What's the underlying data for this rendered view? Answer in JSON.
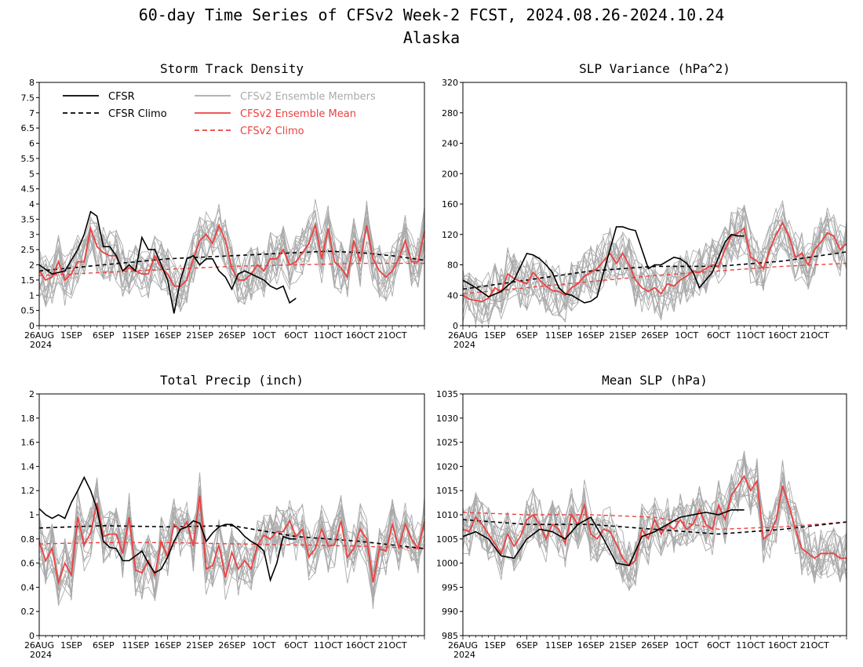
{
  "title": "60-day Time Series of CFSv2 Week-2 FCST, 2024.08.26-2024.10.24",
  "subtitle": "Alaska",
  "colors": {
    "cfsr": "#000000",
    "ensemble_member": "#aaaaaa",
    "ensemble_mean": "#ee4040",
    "cfsv2_climo": "#ee4040"
  },
  "x_tick_labels": [
    "26AUG",
    "1SEP",
    "6SEP",
    "11SEP",
    "16SEP",
    "21SEP",
    "26SEP",
    "1OCT",
    "6OCT",
    "11OCT",
    "16OCT",
    "21OCT"
  ],
  "x_year_label": "2024",
  "legend": {
    "cfsr": "CFSR",
    "cfsr_climo": "CFSR Climo",
    "members": "CFSv2 Ensemble Members",
    "ens_mean": "CFSv2 Ensemble Mean",
    "cfsv2_climo": "CFSv2 Climo"
  },
  "chart_data": [
    {
      "type": "line",
      "title": "Storm Track Density",
      "x_day_offsets_from": "26AUG",
      "xlim": [
        0,
        60
      ],
      "ylim": [
        0,
        8
      ],
      "yticks": [
        "0",
        "0.5",
        "1",
        "1.5",
        "2",
        "2.5",
        "3",
        "3.5",
        "4",
        "4.5",
        "5",
        "5.5",
        "6",
        "6.5",
        "7",
        "7.5",
        "8"
      ],
      "series": [
        {
          "name": "CFSR",
          "x": [
            0,
            2,
            4,
            6,
            7,
            8,
            9,
            10,
            11,
            12,
            13,
            14,
            15,
            16,
            17,
            18,
            19,
            20,
            21,
            22,
            23,
            24,
            25,
            26,
            27,
            28,
            29,
            30,
            31,
            32,
            33,
            34,
            35,
            36,
            37,
            38,
            39,
            40
          ],
          "y": [
            2.0,
            1.7,
            1.8,
            2.5,
            3.0,
            3.75,
            3.6,
            2.6,
            2.6,
            2.3,
            1.8,
            2.0,
            1.8,
            2.9,
            2.5,
            2.5,
            2.0,
            1.5,
            0.4,
            1.5,
            2.2,
            2.3,
            2.0,
            2.2,
            2.2,
            1.8,
            1.6,
            1.2,
            1.7,
            1.8,
            1.7,
            1.6,
            1.5,
            1.3,
            1.2,
            1.3,
            0.75,
            0.9
          ]
        },
        {
          "name": "CFSR Climo",
          "x": [
            0,
            10,
            20,
            30,
            40,
            45,
            50,
            55,
            60
          ],
          "y": [
            1.8,
            2.0,
            2.2,
            2.3,
            2.4,
            2.45,
            2.4,
            2.3,
            2.15
          ]
        },
        {
          "name": "CFSv2 Ensemble Mean",
          "x": [
            0,
            1,
            2,
            3,
            4,
            5,
            6,
            7,
            8,
            9,
            10,
            11,
            12,
            13,
            14,
            15,
            16,
            17,
            18,
            19,
            20,
            21,
            22,
            23,
            24,
            25,
            26,
            27,
            28,
            29,
            30,
            31,
            32,
            33,
            34,
            35,
            36,
            37,
            38,
            39,
            40,
            41,
            42,
            43,
            44,
            45,
            46,
            47,
            48,
            49,
            50,
            51,
            52,
            53,
            54,
            55,
            56,
            57,
            58,
            59,
            60
          ],
          "y": [
            1.8,
            1.5,
            1.6,
            2.1,
            1.5,
            1.7,
            2.1,
            2.1,
            3.2,
            2.6,
            2.4,
            2.3,
            2.3,
            1.8,
            1.9,
            1.8,
            1.7,
            1.7,
            2.3,
            1.9,
            1.7,
            1.3,
            1.3,
            1.5,
            2.2,
            2.8,
            3.0,
            2.7,
            3.3,
            2.8,
            1.9,
            1.5,
            1.5,
            1.7,
            2.0,
            1.8,
            2.2,
            2.2,
            2.5,
            2.0,
            2.1,
            2.4,
            2.7,
            3.3,
            2.2,
            3.2,
            2.1,
            1.9,
            1.6,
            2.8,
            2.1,
            3.3,
            2.2,
            1.8,
            1.6,
            1.8,
            2.2,
            2.8,
            2.1,
            2.1,
            3.1
          ]
        },
        {
          "name": "CFSv2 Climo",
          "x": [
            0,
            10,
            20,
            30,
            40,
            50,
            60
          ],
          "y": [
            1.65,
            1.75,
            1.85,
            1.95,
            2.0,
            2.05,
            2.05
          ]
        }
      ]
    },
    {
      "type": "line",
      "title": "SLP Variance (hPa^2)",
      "x_day_offsets_from": "26AUG",
      "xlim": [
        0,
        60
      ],
      "ylim": [
        0,
        320
      ],
      "yticks": [
        "0",
        "40",
        "80",
        "120",
        "160",
        "200",
        "240",
        "280",
        "320"
      ],
      "series": [
        {
          "name": "CFSR",
          "x": [
            0,
            2,
            4,
            6,
            8,
            10,
            11,
            12,
            13,
            14,
            15,
            16,
            17,
            18,
            19,
            20,
            21,
            22,
            23,
            24,
            25,
            26,
            27,
            28,
            29,
            30,
            31,
            32,
            33,
            34,
            35,
            36,
            37,
            38,
            39,
            40,
            41,
            42,
            43,
            44
          ],
          "y": [
            60,
            50,
            38,
            45,
            60,
            95,
            93,
            88,
            80,
            70,
            50,
            42,
            40,
            35,
            30,
            32,
            38,
            70,
            100,
            130,
            130,
            127,
            125,
            100,
            75,
            80,
            80,
            85,
            90,
            88,
            82,
            70,
            50,
            60,
            70,
            90,
            110,
            120,
            118,
            118
          ]
        },
        {
          "name": "CFSR Climo",
          "x": [
            0,
            10,
            20,
            30,
            40,
            50,
            60
          ],
          "y": [
            48,
            60,
            72,
            78,
            78,
            85,
            97
          ]
        },
        {
          "name": "CFSv2 Ensemble Mean",
          "x": [
            0,
            1,
            2,
            3,
            4,
            5,
            6,
            7,
            8,
            9,
            10,
            11,
            12,
            13,
            14,
            15,
            16,
            17,
            18,
            19,
            20,
            21,
            22,
            23,
            24,
            25,
            26,
            27,
            28,
            29,
            30,
            31,
            32,
            33,
            34,
            35,
            36,
            37,
            38,
            39,
            40,
            41,
            42,
            43,
            44,
            45,
            46,
            47,
            48,
            49,
            50,
            51,
            52,
            53,
            54,
            55,
            56,
            57,
            58,
            59,
            60
          ],
          "y": [
            40,
            35,
            33,
            32,
            36,
            50,
            44,
            68,
            62,
            58,
            55,
            70,
            60,
            52,
            46,
            45,
            40,
            50,
            55,
            65,
            70,
            75,
            85,
            95,
            82,
            95,
            80,
            60,
            50,
            45,
            50,
            42,
            55,
            52,
            60,
            65,
            72,
            70,
            75,
            80,
            78,
            100,
            118,
            122,
            128,
            90,
            85,
            75,
            100,
            120,
            135,
            118,
            90,
            95,
            80,
            100,
            110,
            122,
            118,
            100,
            108
          ]
        },
        {
          "name": "CFSv2 Climo",
          "x": [
            0,
            10,
            20,
            30,
            40,
            50,
            60
          ],
          "y": [
            42,
            50,
            58,
            66,
            72,
            78,
            82
          ]
        }
      ]
    },
    {
      "type": "line",
      "title": "Total Precip (inch)",
      "x_day_offsets_from": "26AUG",
      "xlim": [
        0,
        60
      ],
      "ylim": [
        0,
        2
      ],
      "yticks": [
        "0",
        "0.2",
        "0.4",
        "0.6",
        "0.8",
        "1",
        "1.2",
        "1.4",
        "1.6",
        "1.8",
        "2"
      ],
      "series": [
        {
          "name": "CFSR",
          "x": [
            0,
            1,
            2,
            3,
            4,
            5,
            6,
            7,
            8,
            9,
            10,
            11,
            12,
            13,
            14,
            15,
            16,
            17,
            18,
            19,
            20,
            21,
            22,
            23,
            24,
            25,
            26,
            27,
            28,
            29,
            30,
            31,
            32,
            33,
            34,
            35,
            36,
            37,
            38,
            39,
            40
          ],
          "y": [
            1.05,
            1.0,
            0.97,
            1.0,
            0.97,
            1.1,
            1.2,
            1.31,
            1.2,
            1.05,
            0.78,
            0.73,
            0.72,
            0.62,
            0.62,
            0.66,
            0.7,
            0.6,
            0.52,
            0.55,
            0.65,
            0.78,
            0.88,
            0.9,
            0.95,
            0.93,
            0.78,
            0.85,
            0.9,
            0.92,
            0.92,
            0.88,
            0.82,
            0.78,
            0.75,
            0.7,
            0.46,
            0.6,
            0.82,
            0.8,
            0.8
          ]
        },
        {
          "name": "CFSR Climo",
          "x": [
            0,
            10,
            20,
            30,
            40,
            50,
            60
          ],
          "y": [
            0.89,
            0.91,
            0.9,
            0.91,
            0.82,
            0.78,
            0.72
          ]
        },
        {
          "name": "CFSv2 Ensemble Mean",
          "x": [
            0,
            1,
            2,
            3,
            4,
            5,
            6,
            7,
            8,
            9,
            10,
            11,
            12,
            13,
            14,
            15,
            16,
            17,
            18,
            19,
            20,
            21,
            22,
            23,
            24,
            25,
            26,
            27,
            28,
            29,
            30,
            31,
            32,
            33,
            34,
            35,
            36,
            37,
            38,
            39,
            40,
            41,
            42,
            43,
            44,
            45,
            46,
            47,
            48,
            49,
            50,
            51,
            52,
            53,
            54,
            55,
            56,
            57,
            58,
            59,
            60
          ],
          "y": [
            0.78,
            0.62,
            0.72,
            0.44,
            0.6,
            0.5,
            0.98,
            0.75,
            0.85,
            1.1,
            0.82,
            0.84,
            0.84,
            0.68,
            0.98,
            0.54,
            0.52,
            0.62,
            0.5,
            0.78,
            0.65,
            0.92,
            0.87,
            0.94,
            0.74,
            1.16,
            0.55,
            0.58,
            0.75,
            0.48,
            0.69,
            0.55,
            0.62,
            0.55,
            0.75,
            0.83,
            0.8,
            0.86,
            0.86,
            0.95,
            0.82,
            0.88,
            0.65,
            0.72,
            0.88,
            0.74,
            0.75,
            0.95,
            0.65,
            0.72,
            0.88,
            0.8,
            0.44,
            0.72,
            0.7,
            0.92,
            0.73,
            0.92,
            0.8,
            0.72,
            0.94
          ]
        },
        {
          "name": "CFSv2 Climo",
          "x": [
            0,
            10,
            20,
            30,
            40,
            50,
            60
          ],
          "y": [
            0.76,
            0.77,
            0.77,
            0.76,
            0.75,
            0.74,
            0.72
          ]
        }
      ]
    },
    {
      "type": "line",
      "title": "Mean SLP (hPa)",
      "x_day_offsets_from": "26AUG",
      "xlim": [
        0,
        60
      ],
      "ylim": [
        985,
        1035
      ],
      "yticks": [
        "985",
        "990",
        "995",
        "1000",
        "1005",
        "1010",
        "1015",
        "1020",
        "1025",
        "1030",
        "1035"
      ],
      "series": [
        {
          "name": "CFSR",
          "x": [
            0,
            2,
            4,
            6,
            8,
            10,
            12,
            14,
            16,
            18,
            20,
            22,
            24,
            26,
            28,
            30,
            32,
            34,
            36,
            38,
            40,
            42,
            44
          ],
          "y": [
            1005.5,
            1006.5,
            1005,
            1001.5,
            1001,
            1005,
            1007,
            1006.5,
            1005,
            1008,
            1009.5,
            1005,
            1000,
            999.5,
            1005.5,
            1006.5,
            1008,
            1009.5,
            1010,
            1010.5,
            1010,
            1011,
            1011
          ]
        },
        {
          "name": "CFSR Climo",
          "x": [
            0,
            10,
            20,
            30,
            40,
            50,
            60
          ],
          "y": [
            1009,
            1008,
            1008,
            1007,
            1006,
            1007,
            1008.5
          ]
        },
        {
          "name": "CFSv2 Ensemble Mean",
          "x": [
            0,
            1,
            2,
            3,
            4,
            5,
            6,
            7,
            8,
            9,
            10,
            11,
            12,
            13,
            14,
            15,
            16,
            17,
            18,
            19,
            20,
            21,
            22,
            23,
            24,
            25,
            26,
            27,
            28,
            29,
            30,
            31,
            32,
            33,
            34,
            35,
            36,
            37,
            38,
            39,
            40,
            41,
            42,
            43,
            44,
            45,
            46,
            47,
            48,
            49,
            50,
            51,
            52,
            53,
            54,
            55,
            56,
            57,
            58,
            59,
            60
          ],
          "y": [
            1007,
            1006.5,
            1009.5,
            1008,
            1006,
            1004,
            1002,
            1006,
            1003.5,
            1005.5,
            1009,
            1010,
            1008,
            1005,
            1008,
            1007,
            1004,
            1010,
            1008,
            1012,
            1006,
            1005,
            1007,
            1006.5,
            1004,
            1001,
            999.5,
            1000.5,
            1007,
            1005,
            1009,
            1006,
            1008,
            1007,
            1009,
            1007,
            1008,
            1011,
            1008,
            1007,
            1012,
            1009,
            1014,
            1016,
            1018,
            1015,
            1017,
            1005,
            1006,
            1009,
            1016,
            1012,
            1007,
            1003,
            1002,
            1001,
            1002,
            1002,
            1002,
            1001,
            1001
          ]
        },
        {
          "name": "CFSv2 Climo",
          "x": [
            0,
            10,
            20,
            30,
            40,
            50,
            60
          ],
          "y": [
            1010.5,
            1010,
            1010,
            1009.5,
            1007,
            1007.5,
            1008.5
          ]
        }
      ]
    }
  ]
}
